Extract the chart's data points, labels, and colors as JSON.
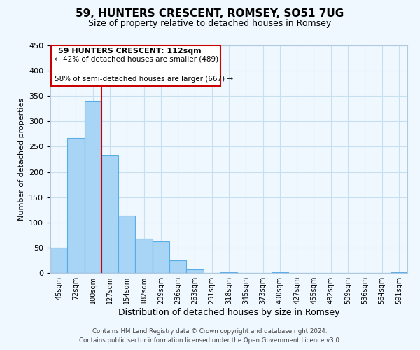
{
  "title": "59, HUNTERS CRESCENT, ROMSEY, SO51 7UG",
  "subtitle": "Size of property relative to detached houses in Romsey",
  "xlabel": "Distribution of detached houses by size in Romsey",
  "ylabel": "Number of detached properties",
  "bar_labels": [
    "45sqm",
    "72sqm",
    "100sqm",
    "127sqm",
    "154sqm",
    "182sqm",
    "209sqm",
    "236sqm",
    "263sqm",
    "291sqm",
    "318sqm",
    "345sqm",
    "373sqm",
    "400sqm",
    "427sqm",
    "455sqm",
    "482sqm",
    "509sqm",
    "536sqm",
    "564sqm",
    "591sqm"
  ],
  "bar_values": [
    50,
    267,
    340,
    232,
    114,
    68,
    62,
    25,
    7,
    0,
    2,
    0,
    0,
    1,
    0,
    0,
    0,
    0,
    0,
    0,
    2
  ],
  "bar_color": "#a8d4f5",
  "bar_edge_color": "#5aaee8",
  "ylim": [
    0,
    450
  ],
  "yticks": [
    0,
    50,
    100,
    150,
    200,
    250,
    300,
    350,
    400,
    450
  ],
  "vline_x": 2,
  "vline_color": "#cc0000",
  "annotation_title": "59 HUNTERS CRESCENT: 112sqm",
  "annotation_line1": "← 42% of detached houses are smaller (489)",
  "annotation_line2": "58% of semi-detached houses are larger (667) →",
  "footer1": "Contains HM Land Registry data © Crown copyright and database right 2024.",
  "footer2": "Contains public sector information licensed under the Open Government Licence v3.0.",
  "bg_color": "#f0f8ff",
  "grid_color": "#c8dff0"
}
